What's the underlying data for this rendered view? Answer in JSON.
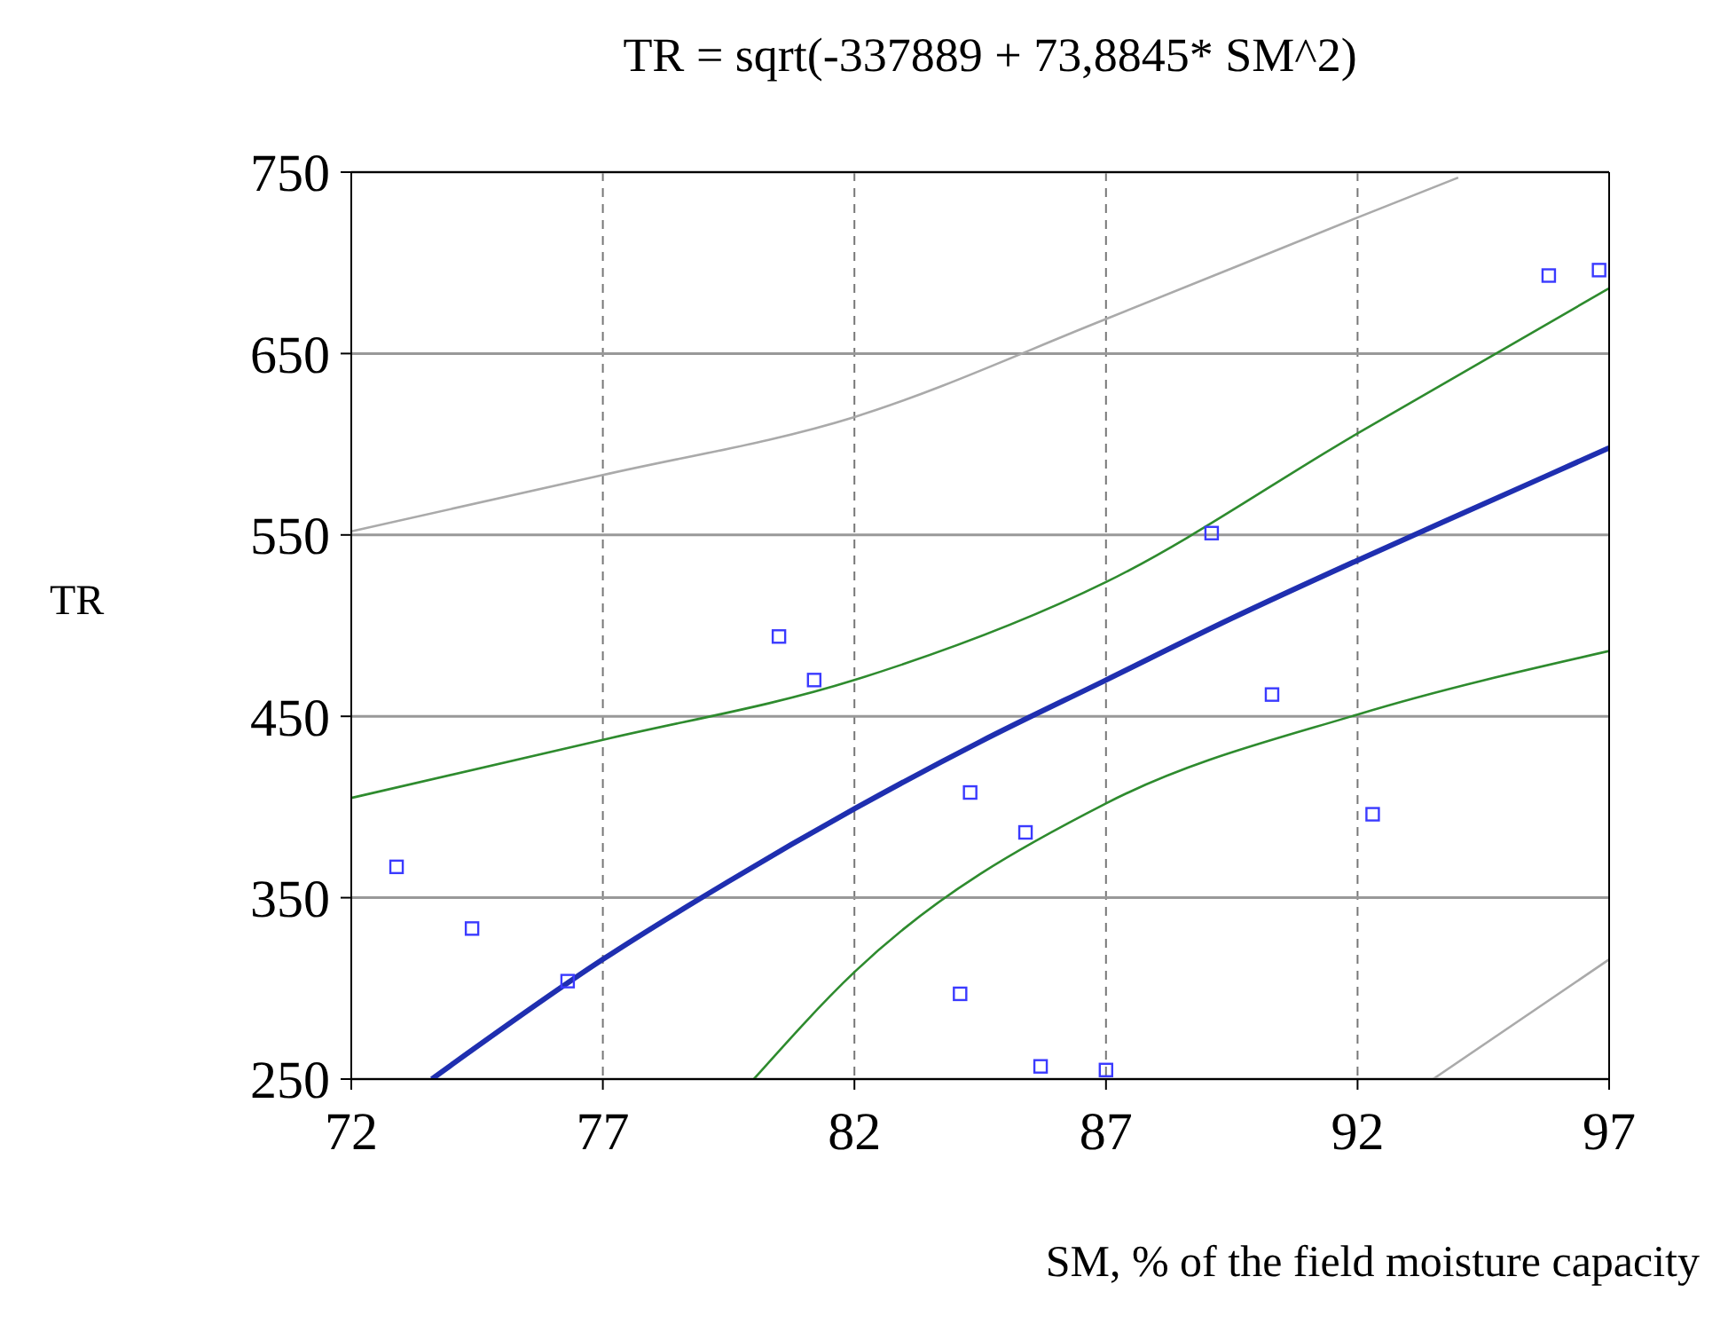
{
  "chart_data": {
    "type": "scatter",
    "title": "TR = sqrt(-337889 + 73,8845* SM^2)",
    "xlabel": "SM, % of the field moisture capacity",
    "ylabel": "TR",
    "xlim": [
      72,
      97
    ],
    "xticks": [
      72,
      77,
      82,
      87,
      92,
      97
    ],
    "ylim": [
      250,
      750
    ],
    "yticks": [
      250,
      350,
      450,
      550,
      650,
      750
    ],
    "grid": true,
    "series": [
      {
        "type": "line",
        "color": "#aaaaaa",
        "marker": "none",
        "x": [
          72,
          77,
          82,
          87,
          92,
          94
        ],
        "values": [
          552,
          583,
          615,
          669,
          725,
          747
        ]
      },
      {
        "type": "line",
        "color": "#aaaaaa",
        "marker": "none",
        "x": [
          93.5,
          97
        ],
        "values": [
          250,
          316
        ]
      },
      {
        "type": "line",
        "color": "#2e8b2e",
        "marker": "none",
        "x": [
          72,
          77,
          82,
          87,
          92,
          97
        ],
        "values": [
          405,
          437,
          470,
          524,
          606,
          686
        ]
      },
      {
        "type": "line",
        "color": "#2e8b2e",
        "marker": "none",
        "x": [
          80,
          82,
          87,
          92,
          97
        ],
        "values": [
          250,
          309,
          402,
          451,
          486
        ]
      },
      {
        "type": "line",
        "color": "#1f2fb0",
        "marker": "none",
        "x": [
          73.6,
          74,
          77,
          79.5,
          82,
          84.5,
          87,
          89.5,
          92,
          94.5,
          97
        ],
        "values": [
          250,
          258,
          316,
          359,
          399,
          436,
          470,
          504,
          536,
          567,
          598
        ]
      },
      {
        "color": "#3a3aff",
        "marker": "square",
        "x": [
          72.9,
          74.4,
          76.3,
          80.5,
          81.2,
          84.3,
          84.1,
          85.4,
          85.7,
          87.0,
          89.1,
          90.3,
          92.3,
          95.8,
          96.8
        ],
        "values": [
          367,
          333,
          304,
          494,
          470,
          408,
          297,
          386,
          257,
          255,
          551,
          462,
          396,
          693,
          696
        ]
      }
    ]
  }
}
